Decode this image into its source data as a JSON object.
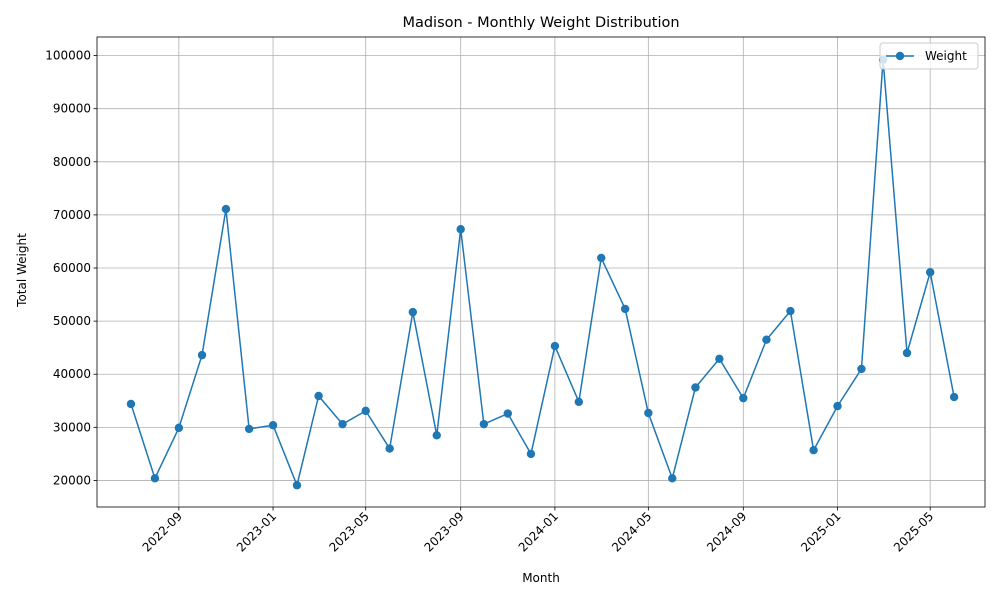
{
  "chart_data": {
    "type": "line",
    "title": "Madison - Monthly Weight Distribution",
    "xlabel": "Month",
    "ylabel": "Total Weight",
    "grid": true,
    "legend_position": "top-right",
    "xlim": [
      "2022-05-18",
      "2025-07-11"
    ],
    "ylim": [
      15000,
      103500
    ],
    "y_ticks": [
      20000,
      30000,
      40000,
      50000,
      60000,
      70000,
      80000,
      90000,
      100000
    ],
    "x_ticks": [
      "2022-09",
      "2023-01",
      "2023-05",
      "2023-09",
      "2024-01",
      "2024-05",
      "2024-09",
      "2025-01",
      "2025-05"
    ],
    "series": [
      {
        "name": "Weight",
        "color": "#1f77b4",
        "marker": "circle",
        "x": [
          "2022-07",
          "2022-08",
          "2022-09",
          "2022-10",
          "2022-11",
          "2022-12",
          "2023-01",
          "2023-02",
          "2023-03",
          "2023-04",
          "2023-05",
          "2023-06",
          "2023-07",
          "2023-08",
          "2023-09",
          "2023-10",
          "2023-11",
          "2023-12",
          "2024-01",
          "2024-02",
          "2024-03",
          "2024-04",
          "2024-05",
          "2024-06",
          "2024-07",
          "2024-08",
          "2024-09",
          "2024-10",
          "2024-11",
          "2024-12",
          "2025-01",
          "2025-02",
          "2025-03",
          "2025-04",
          "2025-05",
          "2025-06"
        ],
        "values": [
          34400,
          20400,
          29900,
          43600,
          71100,
          29700,
          30400,
          19100,
          35900,
          30600,
          33100,
          26000,
          51700,
          28500,
          67300,
          30600,
          32600,
          25000,
          45300,
          34800,
          61900,
          52300,
          32700,
          20400,
          37500,
          42900,
          35500,
          46500,
          51900,
          25700,
          34000,
          41000,
          99200,
          44000,
          59200,
          35700
        ]
      }
    ]
  }
}
